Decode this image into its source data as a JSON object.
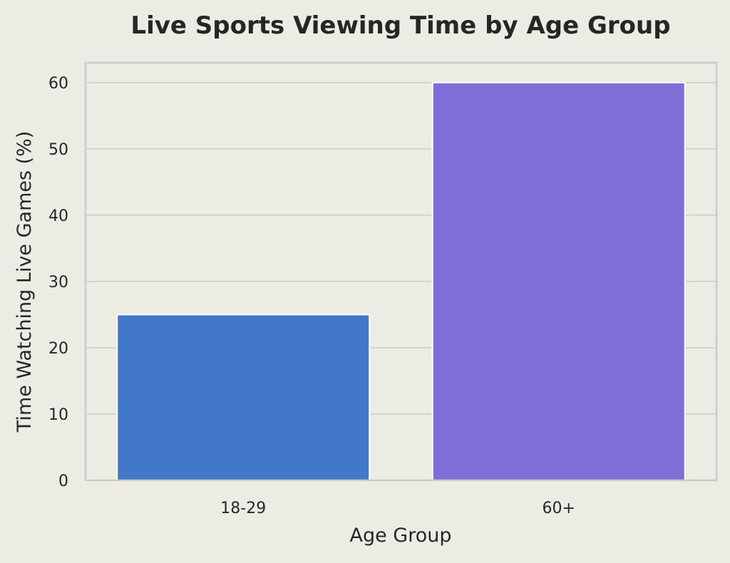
{
  "chart_data": {
    "type": "bar",
    "title": "Live Sports Viewing Time by Age Group",
    "xlabel": "Age Group",
    "ylabel": "Time Watching Live Games (%)",
    "categories": [
      "18-29",
      "60+"
    ],
    "values": [
      25,
      60
    ],
    "colors": [
      "#4178c8",
      "#7f6dd8"
    ],
    "ylim": [
      0,
      63
    ],
    "yticks": [
      0,
      10,
      20,
      30,
      40,
      50,
      60
    ],
    "grid": true,
    "legend": "none"
  },
  "style": {
    "background": "#edece4",
    "grid_color": "#d4d3cc",
    "spine_color": "#cbcac4",
    "text_color": "#262626"
  }
}
